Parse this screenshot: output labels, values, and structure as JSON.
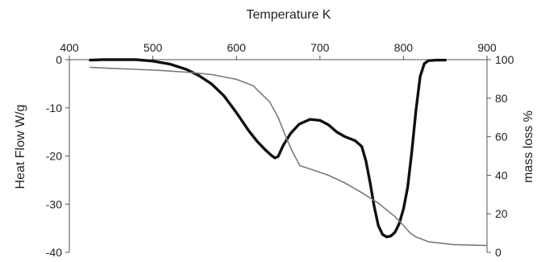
{
  "chart_data": {
    "type": "line",
    "title": "",
    "xlabel": "Temperature K",
    "ylabel_left": "Heat Flow W/g",
    "ylabel_right": "mass loss %",
    "xlim": [
      400,
      900
    ],
    "ylim_left": [
      -40,
      0
    ],
    "ylim_right": [
      0,
      100
    ],
    "x_ticks": [
      "400",
      "500",
      "600",
      "700",
      "800",
      "900"
    ],
    "y_left_ticks": [
      "0",
      "-10",
      "-20",
      "-30",
      "-40"
    ],
    "y_right_ticks": [
      "100",
      "80",
      "60",
      "40",
      "20",
      "0"
    ],
    "grid": false,
    "legend": "none",
    "series": [
      {
        "axis": "left",
        "color": "#111111",
        "style": "thick",
        "x": [
          425,
          440,
          460,
          480,
          500,
          520,
          540,
          555,
          570,
          585,
          600,
          615,
          625,
          635,
          642,
          646,
          650,
          656,
          665,
          675,
          688,
          700,
          710,
          720,
          730,
          742,
          750,
          755,
          760,
          765,
          770,
          775,
          780,
          785,
          790,
          795,
          800,
          805,
          810,
          815,
          820,
          825,
          830,
          840,
          850
        ],
        "y": [
          -0.1,
          0.0,
          0.0,
          0.0,
          -0.3,
          -0.9,
          -2.0,
          -3.3,
          -5.0,
          -7.5,
          -11.0,
          -14.8,
          -17.0,
          -18.8,
          -19.9,
          -20.4,
          -20.1,
          -17.8,
          -15.3,
          -13.4,
          -12.4,
          -12.6,
          -13.5,
          -15.0,
          -16.0,
          -16.8,
          -18.0,
          -21.0,
          -25.5,
          -30.5,
          -34.5,
          -36.3,
          -36.8,
          -36.6,
          -35.8,
          -34.0,
          -31.0,
          -26.5,
          -19.0,
          -10.5,
          -3.5,
          -0.8,
          -0.2,
          -0.1,
          -0.1
        ]
      },
      {
        "axis": "right",
        "color": "#7a7a7a",
        "style": "thin",
        "x": [
          425,
          450,
          480,
          510,
          540,
          570,
          600,
          620,
          640,
          650,
          660,
          668,
          676,
          690,
          710,
          730,
          750,
          770,
          790,
          800,
          808,
          815,
          830,
          860,
          900
        ],
        "y": [
          96.0,
          95.5,
          95.0,
          94.4,
          93.5,
          92.3,
          89.8,
          86.5,
          78.0,
          70.0,
          59.0,
          51.5,
          45.0,
          43.0,
          40.0,
          36.0,
          31.0,
          25.5,
          18.5,
          14.0,
          10.0,
          8.0,
          5.5,
          4.0,
          3.5
        ]
      }
    ]
  }
}
